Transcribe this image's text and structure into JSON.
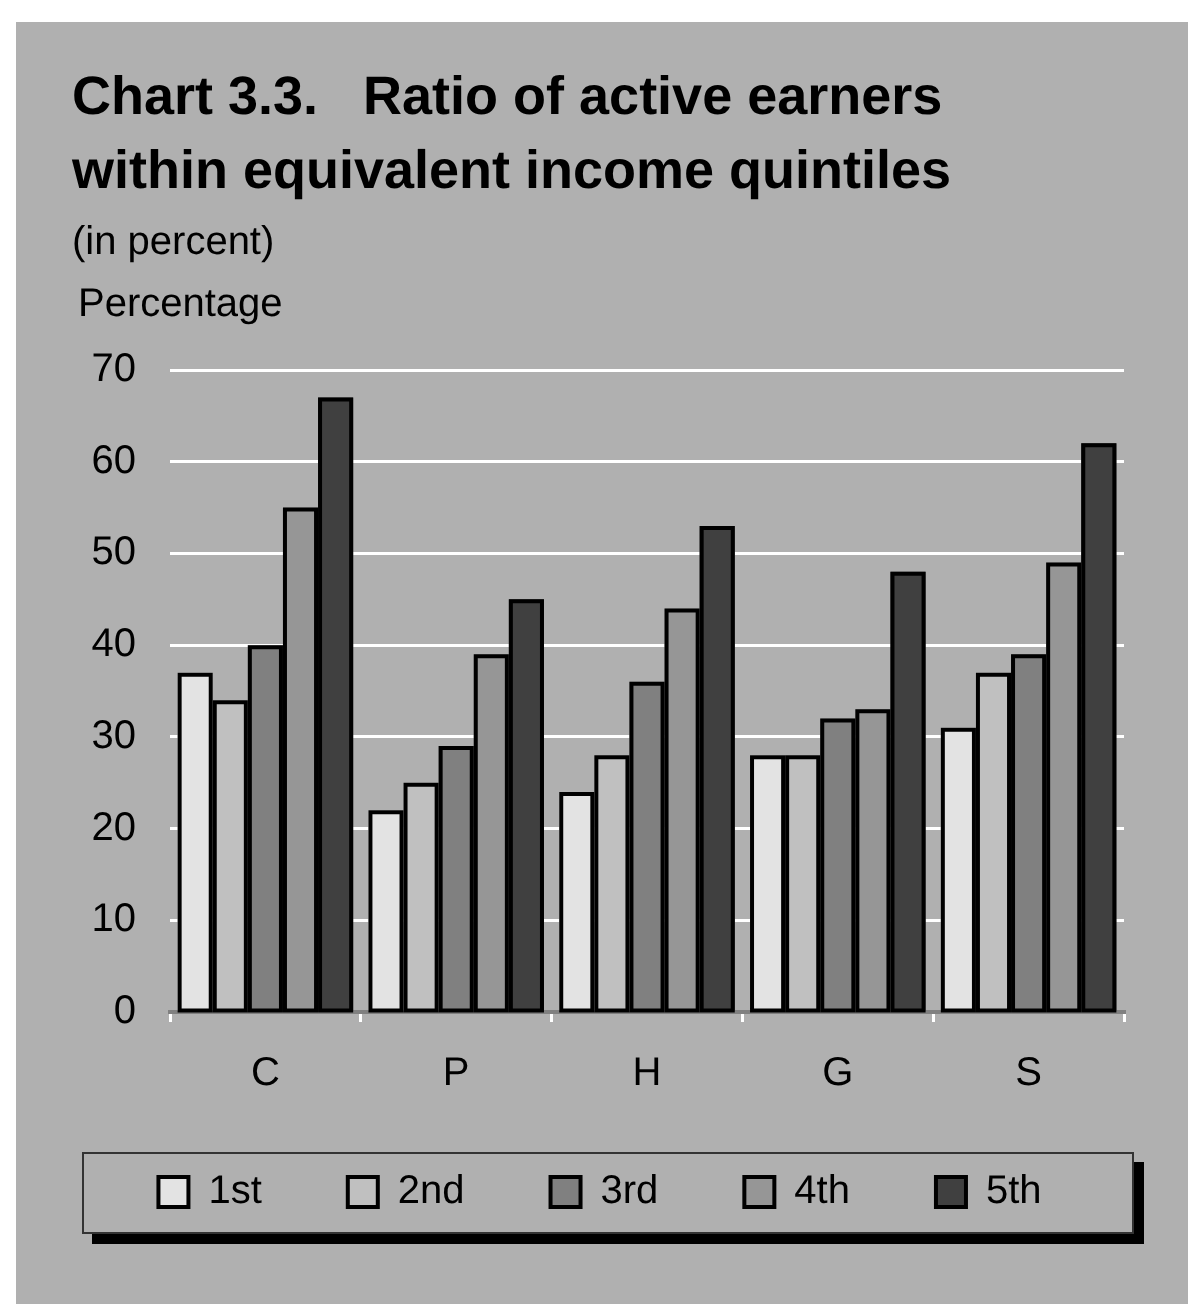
{
  "chart_data": {
    "type": "bar",
    "title": "Chart 3.3.   Ratio of active earners within equivalent income quintiles",
    "subtitle": "(in percent)",
    "ylabel": "Percentage",
    "categories": [
      "C",
      "P",
      "H",
      "G",
      "S"
    ],
    "series": [
      {
        "name": "1st",
        "color": "#e3e3e3",
        "values": [
          37,
          22,
          24,
          28,
          31
        ]
      },
      {
        "name": "2nd",
        "color": "#c0c0c0",
        "values": [
          34,
          25,
          28,
          28,
          37
        ]
      },
      {
        "name": "3rd",
        "color": "#808080",
        "values": [
          40,
          29,
          36,
          32,
          39
        ]
      },
      {
        "name": "4th",
        "color": "#969696",
        "values": [
          55,
          39,
          44,
          33,
          49
        ]
      },
      {
        "name": "5th",
        "color": "#404040",
        "values": [
          67,
          45,
          53,
          48,
          62
        ]
      }
    ],
    "ylim": [
      0,
      70
    ],
    "yticks": [
      0,
      10,
      20,
      30,
      40,
      50,
      60,
      70
    ],
    "grid": "y",
    "legend": "bottom"
  }
}
